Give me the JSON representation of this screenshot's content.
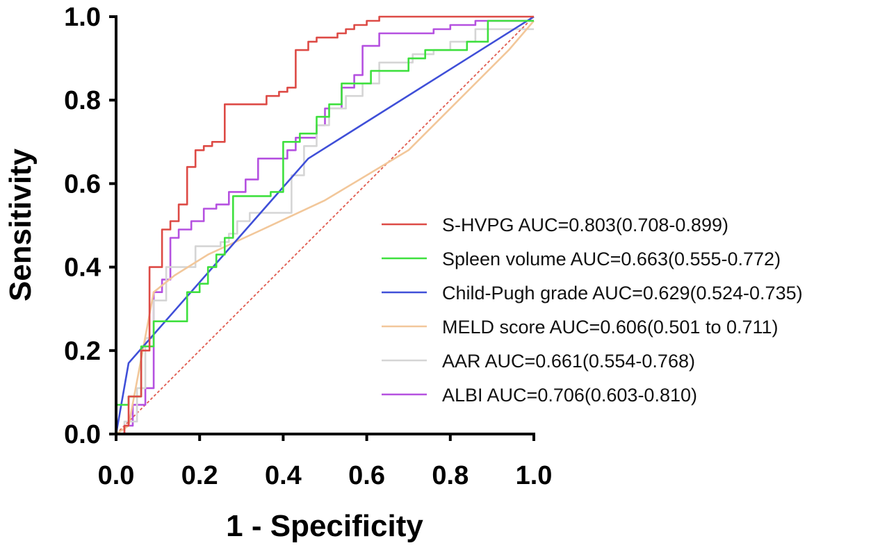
{
  "chart_data": {
    "type": "line",
    "title": "",
    "xlabel": "1 - Specificity",
    "ylabel": "Sensitivity",
    "xlim": [
      0,
      1
    ],
    "ylim": [
      0,
      1
    ],
    "xticks": [
      "0.0",
      "0.2",
      "0.4",
      "0.6",
      "0.8",
      "1.0"
    ],
    "yticks": [
      "0.0",
      "0.2",
      "0.4",
      "0.6",
      "0.8",
      "1.0"
    ],
    "grid": false,
    "legend_position": "right",
    "reference_line": {
      "name": "Reference",
      "color": "#e05a4e",
      "x": [
        0,
        1
      ],
      "y": [
        0,
        1
      ]
    },
    "series": [
      {
        "name": "S-HVPG AUC=0.803(0.708-0.899)",
        "color": "#dd4a45",
        "x": [
          0,
          0.02,
          0.02,
          0.03,
          0.03,
          0.06,
          0.06,
          0.08,
          0.08,
          0.11,
          0.11,
          0.13,
          0.13,
          0.15,
          0.15,
          0.17,
          0.17,
          0.19,
          0.19,
          0.21,
          0.21,
          0.23,
          0.23,
          0.26,
          0.26,
          0.36,
          0.36,
          0.39,
          0.39,
          0.41,
          0.41,
          0.43,
          0.43,
          0.46,
          0.46,
          0.48,
          0.48,
          0.53,
          0.53,
          0.55,
          0.55,
          0.57,
          0.57,
          0.6,
          0.6,
          0.63,
          0.63,
          0.8,
          0.8,
          1.0
        ],
        "y": [
          0,
          0,
          0.02,
          0.02,
          0.09,
          0.09,
          0.2,
          0.2,
          0.4,
          0.4,
          0.49,
          0.49,
          0.51,
          0.51,
          0.55,
          0.55,
          0.64,
          0.64,
          0.68,
          0.68,
          0.69,
          0.69,
          0.7,
          0.7,
          0.79,
          0.79,
          0.81,
          0.81,
          0.82,
          0.82,
          0.83,
          0.83,
          0.92,
          0.92,
          0.94,
          0.94,
          0.95,
          0.95,
          0.96,
          0.96,
          0.97,
          0.97,
          0.98,
          0.98,
          0.99,
          0.99,
          1.0,
          1.0,
          1.0,
          1.0
        ]
      },
      {
        "name": "Spleen volume AUC=0.663(0.555-0.772)",
        "color": "#3ee03e",
        "x": [
          0,
          0,
          0.03,
          0.03,
          0.06,
          0.06,
          0.09,
          0.09,
          0.17,
          0.17,
          0.2,
          0.2,
          0.22,
          0.22,
          0.24,
          0.24,
          0.26,
          0.26,
          0.28,
          0.28,
          0.37,
          0.37,
          0.4,
          0.4,
          0.44,
          0.44,
          0.48,
          0.48,
          0.51,
          0.51,
          0.54,
          0.54,
          0.61,
          0.61,
          0.7,
          0.7,
          0.74,
          0.74,
          0.84,
          0.84,
          0.89,
          0.89,
          1.0
        ],
        "y": [
          0,
          0.07,
          0.07,
          0.09,
          0.09,
          0.21,
          0.21,
          0.27,
          0.27,
          0.34,
          0.34,
          0.36,
          0.36,
          0.4,
          0.4,
          0.43,
          0.43,
          0.47,
          0.47,
          0.57,
          0.57,
          0.58,
          0.58,
          0.7,
          0.7,
          0.72,
          0.72,
          0.76,
          0.76,
          0.79,
          0.79,
          0.84,
          0.84,
          0.87,
          0.87,
          0.9,
          0.9,
          0.92,
          0.92,
          0.94,
          0.94,
          0.99,
          0.99
        ]
      },
      {
        "name": "Child-Pugh grade AUC=0.629(0.524-0.735)",
        "color": "#3f4fd8",
        "x": [
          0,
          0.03,
          0.46,
          1.0
        ],
        "y": [
          0,
          0.17,
          0.66,
          1.0
        ]
      },
      {
        "name": "MELD score AUC=0.606(0.501 to 0.711)",
        "color": "#f2c79a",
        "x": [
          0,
          0.03,
          0.06,
          0.09,
          0.14,
          0.22,
          0.35,
          0.5,
          0.7,
          0.94,
          1.0
        ],
        "y": [
          0,
          0.02,
          0.18,
          0.34,
          0.38,
          0.43,
          0.49,
          0.56,
          0.68,
          0.92,
          0.99
        ]
      },
      {
        "name": "AAR AUC=0.661(0.554-0.768)",
        "color": "#d5d5d5",
        "x": [
          0,
          0.02,
          0.02,
          0.05,
          0.05,
          0.07,
          0.07,
          0.09,
          0.09,
          0.12,
          0.12,
          0.19,
          0.19,
          0.25,
          0.25,
          0.27,
          0.27,
          0.29,
          0.29,
          0.32,
          0.32,
          0.42,
          0.42,
          0.45,
          0.45,
          0.48,
          0.48,
          0.51,
          0.51,
          0.55,
          0.55,
          0.59,
          0.59,
          0.63,
          0.63,
          0.71,
          0.71,
          0.76,
          0.76,
          0.8,
          0.8,
          0.86,
          0.86,
          1.0
        ],
        "y": [
          0,
          0,
          0.03,
          0.03,
          0.11,
          0.11,
          0.23,
          0.23,
          0.32,
          0.32,
          0.4,
          0.4,
          0.45,
          0.45,
          0.46,
          0.46,
          0.48,
          0.48,
          0.51,
          0.51,
          0.53,
          0.53,
          0.62,
          0.62,
          0.69,
          0.69,
          0.74,
          0.74,
          0.78,
          0.78,
          0.81,
          0.81,
          0.84,
          0.84,
          0.89,
          0.89,
          0.91,
          0.91,
          0.92,
          0.92,
          0.94,
          0.94,
          0.97,
          0.97
        ]
      },
      {
        "name": "ALBI AUC=0.706(0.603-0.810)",
        "color": "#b551e0",
        "x": [
          0,
          0.02,
          0.02,
          0.04,
          0.04,
          0.07,
          0.07,
          0.09,
          0.09,
          0.11,
          0.11,
          0.13,
          0.13,
          0.15,
          0.15,
          0.18,
          0.18,
          0.21,
          0.21,
          0.24,
          0.24,
          0.27,
          0.27,
          0.31,
          0.31,
          0.34,
          0.34,
          0.41,
          0.41,
          0.43,
          0.43,
          0.48,
          0.48,
          0.5,
          0.5,
          0.54,
          0.54,
          0.57,
          0.57,
          0.59,
          0.59,
          0.63,
          0.63,
          0.76,
          0.76,
          0.8,
          0.8,
          0.86,
          0.86,
          1.0
        ],
        "y": [
          0,
          0,
          0.02,
          0.02,
          0.07,
          0.07,
          0.11,
          0.11,
          0.34,
          0.34,
          0.37,
          0.37,
          0.47,
          0.47,
          0.49,
          0.49,
          0.51,
          0.51,
          0.54,
          0.54,
          0.55,
          0.55,
          0.58,
          0.58,
          0.61,
          0.61,
          0.66,
          0.66,
          0.68,
          0.68,
          0.71,
          0.71,
          0.74,
          0.74,
          0.78,
          0.78,
          0.83,
          0.83,
          0.86,
          0.86,
          0.93,
          0.93,
          0.96,
          0.96,
          0.97,
          0.97,
          0.98,
          0.98,
          0.99,
          0.99
        ]
      }
    ]
  }
}
